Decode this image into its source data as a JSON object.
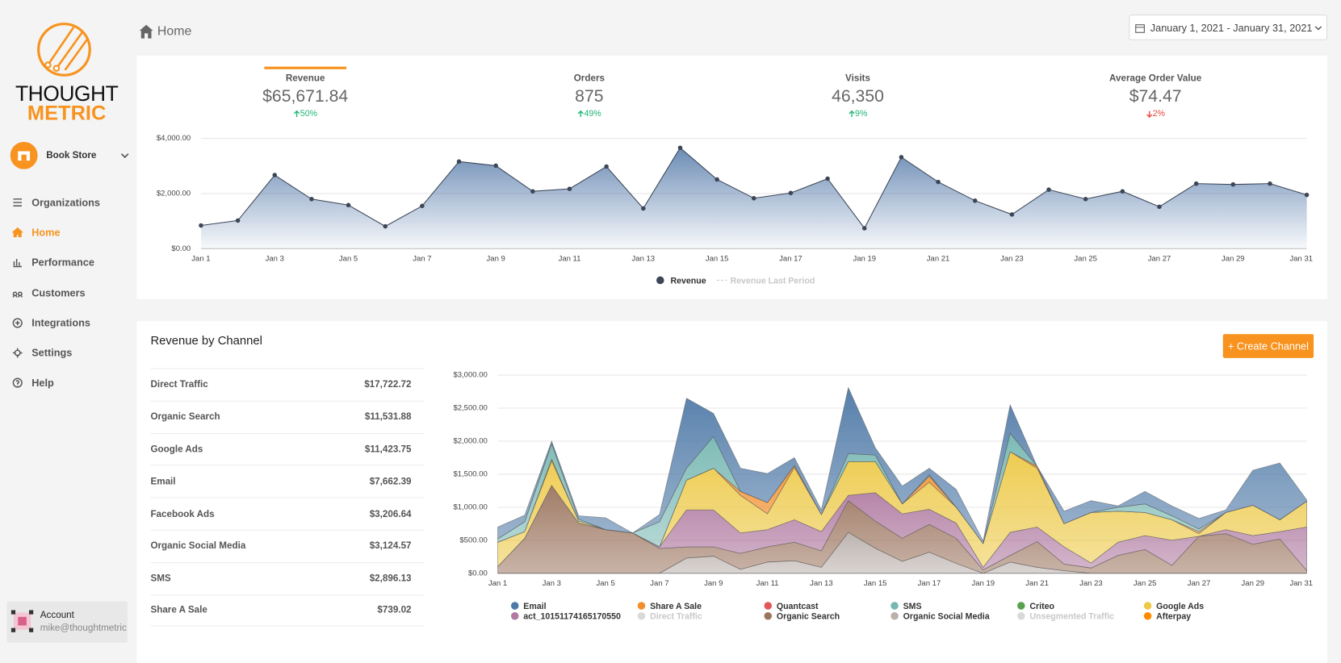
{
  "sidebar": {
    "logo": {
      "line1": "THOUGHT",
      "line2": "METRIC"
    },
    "store": "Book Store",
    "nav": [
      "Organizations",
      "Home",
      "Performance",
      "Customers",
      "Integrations",
      "Settings",
      "Help"
    ],
    "active_nav": 1,
    "account": {
      "label": "Account",
      "email": "mike@thoughtmetric"
    }
  },
  "header": {
    "breadcrumb": "Home",
    "date_range": "January 1, 2021 - January 31, 2021"
  },
  "kpis": {
    "selected": 0,
    "items": [
      {
        "label": "Revenue",
        "value": "$65,671.84",
        "change": "50%",
        "direction": "up"
      },
      {
        "label": "Orders",
        "value": "875",
        "change": "49%",
        "direction": "up"
      },
      {
        "label": "Visits",
        "value": "46,350",
        "change": "9%",
        "direction": "up"
      },
      {
        "label": "Average Order Value",
        "value": "$74.47",
        "change": "2%",
        "direction": "down"
      }
    ]
  },
  "channels": {
    "title": "Revenue by Channel",
    "button": "+ Create Channel",
    "rows": [
      [
        "Direct Traffic",
        "$17,722.72"
      ],
      [
        "Organic Search",
        "$11,531.88"
      ],
      [
        "Google Ads",
        "$11,423.75"
      ],
      [
        "Email",
        "$7,662.39"
      ],
      [
        "Facebook Ads",
        "$3,206.64"
      ],
      [
        "Organic Social Media",
        "$3,124.57"
      ],
      [
        "SMS",
        "$2,896.13"
      ],
      [
        "Share A Sale",
        "$739.02"
      ]
    ]
  },
  "chart_data": [
    {
      "type": "area",
      "categories": [
        "Jan 1",
        null,
        "Jan 3",
        null,
        "Jan 5",
        null,
        "Jan 7",
        null,
        "Jan 9",
        null,
        "Jan 11",
        null,
        "Jan 13",
        null,
        "Jan 15",
        null,
        "Jan 17",
        null,
        "Jan 19",
        null,
        "Jan 21",
        null,
        "Jan 23",
        null,
        "Jan 25",
        null,
        "Jan 27",
        null,
        "Jan 29",
        null,
        "Jan 31"
      ],
      "series": [
        {
          "name": "Revenue",
          "color": "#3c4657",
          "fill_color": "#5b7fad",
          "values": [
            840,
            1020,
            2670,
            1800,
            1580,
            810,
            1550,
            3160,
            3010,
            2080,
            2170,
            2980,
            1460,
            3660,
            2510,
            1830,
            2020,
            2540,
            740,
            3320,
            2420,
            1740,
            1240,
            2140,
            1800,
            2080,
            1520,
            2360,
            2330,
            2360,
            1950
          ]
        },
        {
          "name": "Revenue Last Period",
          "color": "#cccccc",
          "visible": false
        }
      ],
      "ylim": [
        0,
        4000
      ],
      "yticks": [
        {
          "value": 0,
          "label": "$0.00"
        },
        {
          "value": 2000,
          "label": "$2,000.00"
        },
        {
          "value": 4000,
          "label": "$4,000.00"
        }
      ],
      "grid": true
    },
    {
      "type": "stacked_area",
      "categories": [
        "Jan 1",
        null,
        "Jan 3",
        null,
        "Jan 5",
        null,
        "Jan 7",
        null,
        "Jan 9",
        null,
        "Jan 11",
        null,
        "Jan 13",
        null,
        "Jan 15",
        null,
        "Jan 17",
        null,
        "Jan 19",
        null,
        "Jan 21",
        null,
        "Jan 23",
        null,
        "Jan 25",
        null,
        "Jan 27",
        null,
        "Jan 29",
        null,
        "Jan 31"
      ],
      "series": [
        {
          "name": "Email",
          "color": "#4e79a7",
          "values": [
            180,
            100,
            40,
            50,
            180,
            0,
            110,
            1060,
            350,
            350,
            440,
            120,
            70,
            1000,
            110,
            270,
            100,
            270,
            40,
            430,
            0,
            190,
            180,
            20,
            190,
            150,
            160,
            40,
            530,
            860,
            20
          ]
        },
        {
          "name": "Share A Sale",
          "color": "#f28e2b",
          "values": [
            0,
            0,
            30,
            0,
            0,
            0,
            0,
            0,
            0,
            60,
            170,
            30,
            0,
            0,
            0,
            0,
            90,
            0,
            0,
            0,
            30,
            0,
            0,
            0,
            0,
            0,
            30,
            0,
            0,
            0,
            0
          ]
        },
        {
          "name": "Quantcast",
          "color": "#e15759"
        },
        {
          "name": "SMS",
          "color": "#76b7b2",
          "values": [
            50,
            150,
            230,
            30,
            0,
            0,
            380,
            180,
            480,
            0,
            0,
            0,
            0,
            120,
            100,
            0,
            20,
            0,
            0,
            280,
            0,
            0,
            0,
            60,
            130,
            60,
            40,
            0,
            0,
            0,
            0
          ]
        },
        {
          "name": "Criteo",
          "color": "#59a14f"
        },
        {
          "name": "Google Ads",
          "color": "#edc948",
          "values": [
            370,
            100,
            370,
            30,
            0,
            0,
            0,
            450,
            630,
            570,
            240,
            790,
            260,
            510,
            470,
            150,
            410,
            240,
            360,
            1220,
            890,
            350,
            765,
            470,
            350,
            310,
            40,
            260,
            460,
            180,
            390
          ]
        },
        {
          "name": "act_10151174165170550",
          "color": "#b07aa1",
          "values": [
            0,
            0,
            0,
            0,
            0,
            0,
            25,
            560,
            560,
            310,
            260,
            340,
            290,
            80,
            430,
            370,
            230,
            230,
            40,
            350,
            220,
            260,
            75,
            200,
            210,
            380,
            0,
            60,
            130,
            110,
            660
          ]
        },
        {
          "name": "Direct Traffic",
          "color": "#d3d3d3",
          "visible": false
        },
        {
          "name": "Organic Search",
          "color": "#9c755f",
          "values": [
            100,
            530,
            1330,
            760,
            660,
            610,
            375,
            170,
            140,
            240,
            230,
            280,
            250,
            480,
            410,
            350,
            420,
            380,
            50,
            100,
            390,
            100,
            80,
            270,
            360,
            120,
            560,
            600,
            440,
            520,
            40
          ]
        },
        {
          "name": "Organic Social Media",
          "color": "#bab0ac",
          "values": [
            0,
            0,
            0,
            0,
            0,
            0,
            0,
            230,
            260,
            60,
            170,
            190,
            90,
            620,
            380,
            180,
            320,
            150,
            0,
            170,
            90,
            40,
            0,
            0,
            0,
            0,
            0,
            0,
            0,
            0,
            0
          ]
        },
        {
          "name": "Unsegmented Traffic",
          "color": "#cfcfcf",
          "visible": false
        },
        {
          "name": "Afterpay",
          "color": "#ff8c00"
        }
      ],
      "stack_order": [
        9,
        8,
        6,
        5,
        1,
        3,
        0
      ],
      "ylim": [
        0,
        3000
      ],
      "yticks": [
        {
          "value": 0,
          "label": "$0.00"
        },
        {
          "value": 500,
          "label": "$500.00"
        },
        {
          "value": 1000,
          "label": "$1,000.00"
        },
        {
          "value": 1500,
          "label": "$1,500.00"
        },
        {
          "value": 2000,
          "label": "$2,000.00"
        },
        {
          "value": 2500,
          "label": "$2,500.00"
        },
        {
          "value": 3000,
          "label": "$3,000.00"
        }
      ],
      "grid": true
    }
  ]
}
